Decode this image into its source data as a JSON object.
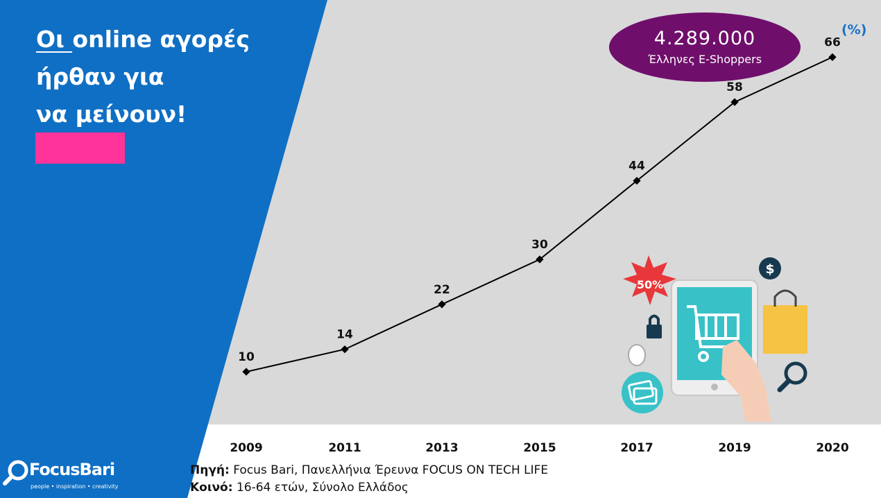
{
  "headline": {
    "line1": "Οι online αγορές",
    "line2": "ήρθαν για",
    "line3": "να μείνουν!"
  },
  "badge": {
    "value": "4.289.000",
    "label": "Έλληνες E-Shoppers"
  },
  "unit_label": "(%)",
  "source": {
    "source_prefix": "Πηγή:",
    "source_text": "Focus Bari, Πανελλήνια Έρευνα FOCUS ON TECH LIFE",
    "audience_prefix": "Κοινό:",
    "audience_text": "16-64 ετών, Σύνολο Ελλάδος"
  },
  "logo": {
    "name": "FocusBari",
    "tagline": "people • inspiration • creativity"
  },
  "illustration": {
    "discount_text": "50%"
  },
  "colors": {
    "left_panel": "#0f6fc4",
    "chart_bg": "#d9d9d9",
    "pink_bar": "#ff3399",
    "badge": "#6f0f6b",
    "unit": "#1570c8",
    "line": "#000000"
  },
  "chart_data": {
    "type": "line",
    "categories": [
      "2009",
      "2011",
      "2013",
      "2015",
      "2017",
      "2019",
      "2020"
    ],
    "values": [
      10,
      14,
      22,
      30,
      44,
      58,
      66
    ],
    "data_labels": [
      "10",
      "14",
      "22",
      "30",
      "44",
      "58",
      "66"
    ],
    "title": "",
    "xlabel": "",
    "ylabel": "(%)",
    "ylim": [
      0,
      70
    ],
    "grid": false,
    "legend": "none"
  }
}
